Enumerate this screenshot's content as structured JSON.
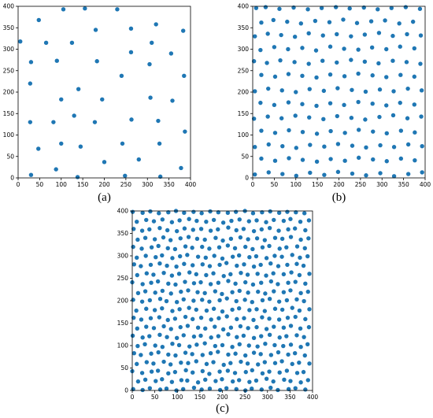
{
  "chart_data": [
    {
      "type": "scatter",
      "caption": "(a)",
      "color": "#1f77b4",
      "xlim": [
        0,
        400
      ],
      "ylim": [
        0,
        400
      ],
      "xticks": [
        0,
        50,
        100,
        150,
        200,
        250,
        300,
        350,
        400
      ],
      "yticks": [
        0,
        50,
        100,
        150,
        200,
        250,
        300,
        350,
        400
      ],
      "x": [
        5,
        30,
        28,
        28,
        48,
        65,
        90,
        100,
        105,
        100,
        47,
        30,
        88,
        82,
        125,
        130,
        140,
        145,
        138,
        155,
        180,
        183,
        178,
        195,
        200,
        230,
        240,
        242,
        248,
        262,
        262,
        263,
        280,
        305,
        310,
        307,
        320,
        325,
        328,
        330,
        355,
        358,
        383,
        385,
        387,
        378
      ],
      "y": [
        318,
        270,
        220,
        130,
        368,
        315,
        273,
        183,
        393,
        80,
        68,
        7,
        20,
        130,
        315,
        145,
        207,
        73,
        2,
        395,
        345,
        272,
        130,
        183,
        37,
        393,
        238,
        80,
        5,
        348,
        293,
        136,
        43,
        265,
        315,
        187,
        358,
        133,
        80,
        3,
        290,
        180,
        343,
        238,
        108,
        23
      ]
    },
    {
      "type": "scatter",
      "caption": "(b)",
      "color": "#1f77b4",
      "xlim": [
        0,
        400
      ],
      "ylim": [
        0,
        400
      ],
      "xticks": [
        0,
        50,
        100,
        150,
        200,
        250,
        300,
        350,
        400
      ],
      "yticks": [
        0,
        50,
        100,
        150,
        200,
        250,
        300,
        350,
        400
      ],
      "x": [
        8,
        30,
        62,
        95,
        128,
        160,
        193,
        225,
        258,
        290,
        322,
        355,
        388,
        20,
        48,
        80,
        112,
        145,
        178,
        210,
        242,
        275,
        307,
        340,
        372,
        5,
        35,
        66,
        98,
        130,
        163,
        195,
        228,
        260,
        293,
        325,
        358,
        390,
        18,
        50,
        82,
        115,
        147,
        180,
        212,
        245,
        277,
        310,
        342,
        375,
        3,
        33,
        64,
        97,
        130,
        162,
        195,
        228,
        260,
        292,
        325,
        357,
        389,
        20,
        52,
        83,
        115,
        148,
        180,
        213,
        245,
        278,
        310,
        343,
        375,
        5,
        36,
        68,
        100,
        132,
        165,
        197,
        230,
        262,
        295,
        327,
        360,
        392,
        18,
        50,
        83,
        115,
        148,
        180,
        212,
        245,
        278,
        310,
        342,
        375,
        3,
        35,
        67,
        99,
        131,
        164,
        196,
        229,
        261,
        294,
        326,
        359,
        391,
        20,
        52,
        84,
        116,
        149,
        181,
        214,
        246,
        279,
        311,
        344,
        376,
        5,
        37,
        69,
        101,
        133,
        166,
        198,
        231,
        263,
        296,
        328,
        361,
        393,
        20,
        52,
        84,
        116,
        149,
        181,
        214,
        246,
        279,
        311,
        344,
        376,
        5,
        37,
        69,
        101,
        133,
        166,
        198,
        231,
        263,
        296,
        328,
        361,
        393
      ],
      "y": [
        396,
        398,
        394,
        397,
        393,
        396,
        398,
        395,
        397,
        393,
        396,
        398,
        394,
        362,
        368,
        364,
        360,
        366,
        363,
        369,
        361,
        365,
        367,
        360,
        364,
        330,
        336,
        333,
        329,
        337,
        332,
        335,
        330,
        334,
        338,
        331,
        335,
        332,
        298,
        305,
        300,
        303,
        297,
        306,
        301,
        299,
        304,
        300,
        306,
        302,
        272,
        268,
        274,
        270,
        266,
        273,
        269,
        275,
        271,
        267,
        273,
        270,
        266,
        240,
        236,
        242,
        238,
        234,
        241,
        237,
        243,
        239,
        235,
        240,
        236,
        202,
        208,
        204,
        200,
        207,
        203,
        209,
        205,
        201,
        206,
        202,
        208,
        204,
        175,
        170,
        176,
        172,
        168,
        174,
        170,
        177,
        173,
        169,
        175,
        171,
        138,
        143,
        139,
        145,
        141,
        137,
        144,
        140,
        136,
        142,
        146,
        139,
        143,
        110,
        105,
        111,
        107,
        103,
        109,
        105,
        112,
        108,
        104,
        110,
        106,
        72,
        78,
        74,
        70,
        77,
        73,
        79,
        75,
        71,
        76,
        72,
        78,
        74,
        45,
        40,
        46,
        42,
        38,
        44,
        40,
        47,
        43,
        39,
        45,
        41,
        8,
        13,
        9,
        5,
        12,
        7,
        14,
        10,
        6,
        11,
        4,
        9,
        13
      ]
    },
    {
      "type": "scatter",
      "caption": "(c)",
      "color": "#1f77b4",
      "xlim": [
        0,
        400
      ],
      "ylim": [
        0,
        400
      ],
      "xticks": [
        0,
        50,
        100,
        150,
        200,
        250,
        300,
        350,
        400
      ],
      "yticks": [
        0,
        50,
        100,
        150,
        200,
        250,
        300,
        350,
        400
      ],
      "x": [
        2,
        23,
        39,
        62,
        76,
        98,
        113,
        137,
        154,
        172,
        195,
        209,
        231,
        251,
        265,
        287,
        307,
        323,
        347,
        362,
        384,
        13,
        29,
        52,
        66,
        88,
        109,
        122,
        146,
        162,
        185,
        199,
        223,
        237,
        260,
        275,
        298,
        313,
        337,
        351,
        374,
        390,
        0,
        22,
        43,
        57,
        80,
        95,
        119,
        134,
        156,
        171,
        194,
        212,
        228,
        252,
        266,
        289,
        304,
        327,
        343,
        366,
        380,
        10,
        32,
        47,
        70,
        85,
        108,
        124,
        142,
        165,
        180,
        203,
        218,
        241,
        256,
        279,
        294,
        317,
        332,
        355,
        370,
        393,
        4,
        19,
        42,
        58,
        80,
        96,
        118,
        133,
        156,
        174,
        190,
        213,
        229,
        251,
        270,
        285,
        308,
        324,
        346,
        361,
        383,
        12,
        28,
        51,
        67,
        89,
        104,
        127,
        143,
        161,
        184,
        200,
        222,
        238,
        259,
        278,
        295,
        316,
        335,
        352,
        374,
        389,
        1,
        23,
        38,
        61,
        77,
        99,
        114,
        137,
        152,
        175,
        191,
        213,
        232,
        247,
        270,
        286,
        305,
        327,
        342,
        365,
        381,
        11,
        31,
        48,
        70,
        86,
        107,
        123,
        146,
        162,
        183,
        202,
        219,
        240,
        257,
        276,
        298,
        314,
        336,
        352,
        373,
        392,
        3,
        20,
        41,
        60,
        79,
        95,
        118,
        134,
        153,
        175,
        192,
        210,
        232,
        248,
        269,
        288,
        304,
        326,
        345,
        362,
        384,
        9,
        31,
        50,
        66,
        89,
        105,
        126,
        142,
        165,
        181,
        200,
        222,
        237,
        260,
        276,
        294,
        317,
        333,
        355,
        371,
        393,
        2,
        22,
        39,
        62,
        76,
        99,
        114,
        136,
        155,
        171,
        194,
        210,
        231,
        250,
        266,
        289,
        305,
        326,
        343,
        365,
        381,
        13,
        29,
        51,
        67,
        86,
        108,
        124,
        145,
        161,
        184,
        199,
        222,
        238,
        257,
        279,
        295,
        314,
        336,
        351,
        374,
        390,
        0,
        23,
        42,
        57,
        80,
        96,
        117,
        137,
        152,
        174,
        191,
        213,
        229,
        251,
        268,
        286,
        308,
        323,
        346,
        362,
        384,
        11,
        32,
        47,
        70,
        88,
        104,
        127,
        142,
        164,
        180,
        203,
        218,
        241,
        256,
        278,
        297,
        313,
        336,
        353,
        371,
        393,
        4,
        19,
        41,
        61,
        77,
        98,
        115,
        134,
        156,
        172,
        194,
        209,
        232,
        248,
        270,
        285,
        307,
        324,
        344,
        365,
        380,
        10,
        30,
        52,
        66,
        89,
        106,
        122,
        146,
        163,
        182,
        200,
        223,
        237,
        260,
        275,
        298,
        316,
        332,
        355,
        372,
        389,
        2,
        21,
        43,
        58,
        79,
        95,
        118,
        133,
        155,
        171,
        193,
        212,
        228,
        251,
        267,
        289,
        304,
        327,
        342,
        366,
        383,
        12,
        29,
        50,
        69,
        85,
        107,
        125,
        144,
        161,
        185,
        201,
        219,
        240,
        257,
        277,
        294,
        317,
        333,
        352,
        374,
        391,
        3,
        22,
        38,
        61,
        78,
        99,
        116,
        135,
        153,
        174,
        190,
        213,
        231,
        247,
        270,
        287,
        305,
        325,
        346,
        361,
        384,
        10,
        31,
        48,
        67,
        88,
        105,
        126,
        143,
        164,
        181,
        202,
        220,
        238,
        259,
        276,
        297,
        314,
        336,
        351,
        373,
        392,
        1,
        23,
        40,
        59,
        80,
        97,
        115,
        136,
        154,
        173,
        191,
        212,
        230,
        250,
        268,
        288,
        306,
        326,
        344,
        363,
        382
      ],
      "y": [
        3,
        1,
        5,
        2,
        4,
        0,
        3,
        6,
        2,
        4,
        1,
        5,
        3,
        0,
        4,
        2,
        6,
        1,
        3,
        5,
        2,
        20,
        24,
        21,
        25,
        19,
        23,
        22,
        18,
        24,
        21,
        25,
        20,
        23,
        19,
        22,
        26,
        20,
        24,
        21,
        18,
        23,
        43,
        39,
        42,
        44,
        38,
        41,
        45,
        40,
        43,
        37,
        42,
        44,
        39,
        41,
        45,
        38,
        42,
        40,
        44,
        39,
        41,
        59,
        63,
        60,
        64,
        58,
        62,
        61,
        65,
        59,
        63,
        57,
        61,
        64,
        60,
        58,
        63,
        61,
        65,
        59,
        62,
        60,
        83,
        79,
        82,
        85,
        80,
        78,
        84,
        81,
        79,
        83,
        86,
        80,
        82,
        78,
        84,
        81,
        79,
        85,
        80,
        83,
        78,
        99,
        103,
        100,
        97,
        104,
        101,
        98,
        102,
        105,
        99,
        101,
        97,
        103,
        100,
        98,
        104,
        101,
        99,
        102,
        97,
        103,
        122,
        118,
        121,
        124,
        119,
        117,
        123,
        120,
        122,
        118,
        121,
        125,
        119,
        122,
        117,
        121,
        124,
        118,
        121,
        123,
        119,
        138,
        142,
        139,
        143,
        137,
        141,
        144,
        140,
        138,
        142,
        136,
        140,
        143,
        139,
        141,
        137,
        142,
        140,
        144,
        138,
        141,
        162,
        158,
        161,
        163,
        157,
        160,
        164,
        159,
        162,
        158,
        161,
        165,
        159,
        161,
        157,
        163,
        160,
        158,
        162,
        164,
        159,
        178,
        182,
        179,
        183,
        177,
        181,
        184,
        180,
        178,
        182,
        176,
        180,
        183,
        179,
        181,
        177,
        182,
        180,
        184,
        178,
        181,
        202,
        198,
        201,
        204,
        199,
        197,
        203,
        200,
        202,
        198,
        201,
        205,
        199,
        202,
        197,
        201,
        204,
        198,
        201,
        203,
        199,
        217,
        221,
        218,
        222,
        216,
        220,
        223,
        219,
        217,
        221,
        215,
        219,
        222,
        218,
        220,
        216,
        221,
        219,
        223,
        217,
        220,
        241,
        237,
        240,
        243,
        238,
        236,
        242,
        239,
        241,
        237,
        240,
        244,
        238,
        241,
        236,
        240,
        243,
        237,
        240,
        242,
        238,
        257,
        261,
        258,
        262,
        256,
        260,
        263,
        259,
        257,
        261,
        255,
        259,
        262,
        258,
        260,
        256,
        261,
        259,
        263,
        257,
        260,
        281,
        277,
        280,
        283,
        278,
        276,
        282,
        279,
        281,
        277,
        280,
        284,
        278,
        281,
        276,
        280,
        283,
        277,
        280,
        282,
        278,
        296,
        300,
        297,
        301,
        295,
        299,
        302,
        298,
        296,
        300,
        294,
        298,
        301,
        297,
        299,
        295,
        300,
        298,
        302,
        296,
        299,
        320,
        316,
        319,
        322,
        317,
        315,
        321,
        318,
        320,
        316,
        319,
        323,
        317,
        320,
        315,
        319,
        322,
        316,
        319,
        321,
        317,
        336,
        340,
        337,
        341,
        335,
        339,
        342,
        338,
        336,
        340,
        334,
        338,
        341,
        337,
        339,
        335,
        340,
        338,
        342,
        336,
        339,
        360,
        356,
        359,
        362,
        357,
        355,
        361,
        358,
        360,
        356,
        359,
        363,
        357,
        360,
        355,
        359,
        362,
        356,
        359,
        361,
        357,
        376,
        380,
        377,
        381,
        375,
        379,
        382,
        378,
        376,
        380,
        374,
        378,
        381,
        377,
        379,
        375,
        380,
        378,
        382,
        376,
        379,
        398,
        396,
        399,
        395,
        397,
        400,
        396,
        398,
        395,
        399,
        397,
        396,
        398,
        400,
        395,
        397,
        399,
        396,
        398,
        397,
        395
      ]
    }
  ]
}
